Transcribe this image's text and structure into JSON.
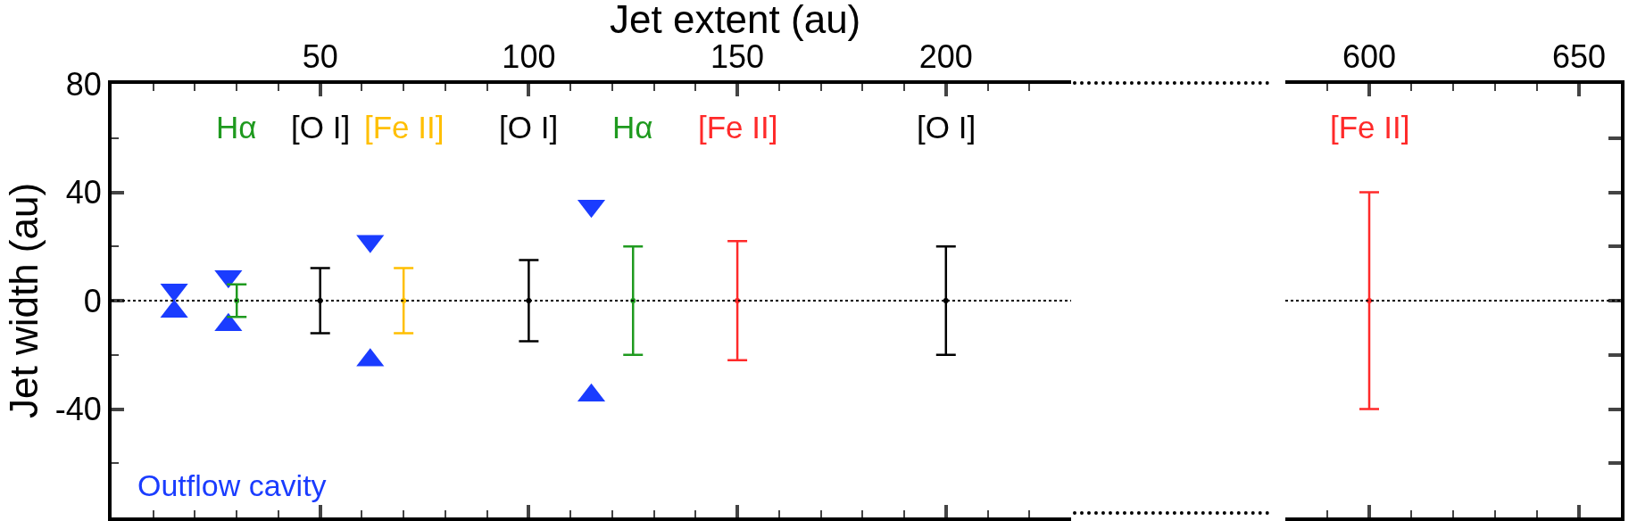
{
  "chart_data": [
    {
      "type": "scatter",
      "xlabel": "Jet extent (au)",
      "ylabel": "Jet width (au)",
      "xlim": [
        0,
        230
      ],
      "xticks": [
        {
          "value": 10,
          "label": null
        },
        {
          "value": 20,
          "label": null
        },
        {
          "value": 30,
          "label": null
        },
        {
          "value": 40,
          "label": null
        },
        50,
        {
          "value": 60,
          "label": null
        },
        {
          "value": 70,
          "label": null
        },
        {
          "value": 80,
          "label": null
        },
        {
          "value": 90,
          "label": null
        },
        100,
        {
          "value": 110,
          "label": null
        },
        {
          "value": 120,
          "label": null
        },
        {
          "value": 130,
          "label": null
        },
        {
          "value": 140,
          "label": null
        },
        150,
        {
          "value": 160,
          "label": null
        },
        {
          "value": 170,
          "label": null
        },
        {
          "value": 180,
          "label": null
        },
        {
          "value": 190,
          "label": null
        },
        200,
        {
          "value": 210,
          "label": null
        },
        {
          "value": 220,
          "label": null
        }
      ],
      "ylim": [
        -80,
        80
      ],
      "yticks": [
        {
          "value": -80,
          "label": null
        },
        {
          "value": -60,
          "label": null
        },
        -40,
        {
          "value": -20,
          "label": null
        },
        0,
        {
          "value": 20,
          "label": null
        },
        40,
        {
          "value": 60,
          "label": null
        },
        80
      ],
      "ref_lines": [
        {
          "axis": "y",
          "value": 0,
          "color": "#000000",
          "line_style": "dotted"
        }
      ],
      "series": [
        {
          "name": "Outflow cavity",
          "color": "#1a3cff",
          "marker": "triangle",
          "x": [
            15,
            15,
            28,
            28,
            62,
            62,
            115,
            115
          ],
          "values": [
            4,
            -4,
            9,
            -9,
            22,
            -22,
            35,
            -35
          ]
        },
        {
          "name": "Hα",
          "color": "#1f9a1f",
          "marker": "none",
          "x": [
            30,
            125
          ],
          "values": [
            0,
            0
          ],
          "errors": [
            6,
            20
          ]
        },
        {
          "name": "[O I]",
          "color": "#000000",
          "marker": "none",
          "x": [
            50,
            100,
            200
          ],
          "values": [
            0,
            0,
            0
          ],
          "errors": [
            12,
            15,
            20
          ]
        },
        {
          "name": "[Fe II]",
          "color": "#ffbf00",
          "marker": "none",
          "x": [
            70
          ],
          "values": [
            0
          ],
          "errors": [
            12
          ]
        },
        {
          "name": "[Fe II]",
          "color": "#ff2a2a",
          "marker": "none",
          "x": [
            150
          ],
          "values": [
            0
          ],
          "errors": [
            22
          ]
        }
      ]
    },
    {
      "type": "scatter",
      "tick_labels": "x",
      "xlim": [
        580,
        660
      ],
      "xticks": [
        {
          "value": 590,
          "label": null
        },
        600,
        {
          "value": 610,
          "label": null
        },
        {
          "value": 620,
          "label": null
        },
        {
          "value": 630,
          "label": null
        },
        {
          "value": 640,
          "label": null
        },
        650
      ],
      "ylim": [
        -80,
        80
      ],
      "yticks": [
        {
          "value": -80,
          "label": null
        },
        {
          "value": -60,
          "label": null
        },
        {
          "value": -40,
          "label": null
        },
        {
          "value": -20,
          "label": null
        },
        {
          "value": 0,
          "label": null
        },
        {
          "value": 20,
          "label": null
        },
        {
          "value": 40,
          "label": null
        },
        {
          "value": 60,
          "label": null
        },
        {
          "value": 80,
          "label": null
        }
      ],
      "ref_lines": [
        {
          "axis": "y",
          "value": 0,
          "color": "#000000",
          "line_style": "dotted"
        }
      ],
      "series": [
        {
          "name": "[Fe II]",
          "color": "#ff2a2a",
          "marker": "none",
          "x": [
            600
          ],
          "values": [
            0
          ],
          "errors": [
            40
          ]
        }
      ]
    }
  ]
}
